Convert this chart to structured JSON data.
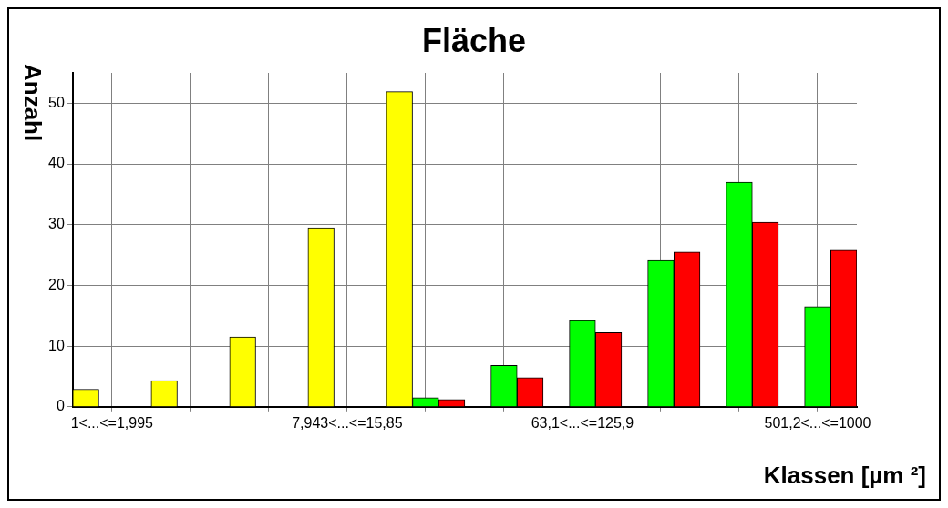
{
  "chart_data": {
    "type": "bar",
    "title": "Fläche",
    "xlabel": "Klassen [µm ²]",
    "ylabel": "Anzahl",
    "categories": [
      "1<...<=1,995",
      null,
      null,
      "7,943<...<=15,85",
      null,
      null,
      "63,1<...<=125,9",
      null,
      null,
      "501,2<...<=1000"
    ],
    "series": [
      {
        "color": "#ffff00",
        "values": [
          2.9,
          4.3,
          11.5,
          29.5,
          51.9,
          null,
          null,
          null,
          null,
          null
        ]
      },
      {
        "color": "#00ff00",
        "values": [
          null,
          null,
          null,
          null,
          1.5,
          6.8,
          14.2,
          24.1,
          37,
          16.5
        ]
      },
      {
        "color": "#ff0000",
        "values": [
          null,
          null,
          null,
          null,
          1.2,
          4.8,
          12.2,
          25.5,
          30.4,
          25.8
        ]
      }
    ],
    "ylim": [
      0,
      55
    ],
    "yticks": [
      0,
      10,
      20,
      30,
      40,
      50
    ],
    "grid": true,
    "legend": false
  }
}
